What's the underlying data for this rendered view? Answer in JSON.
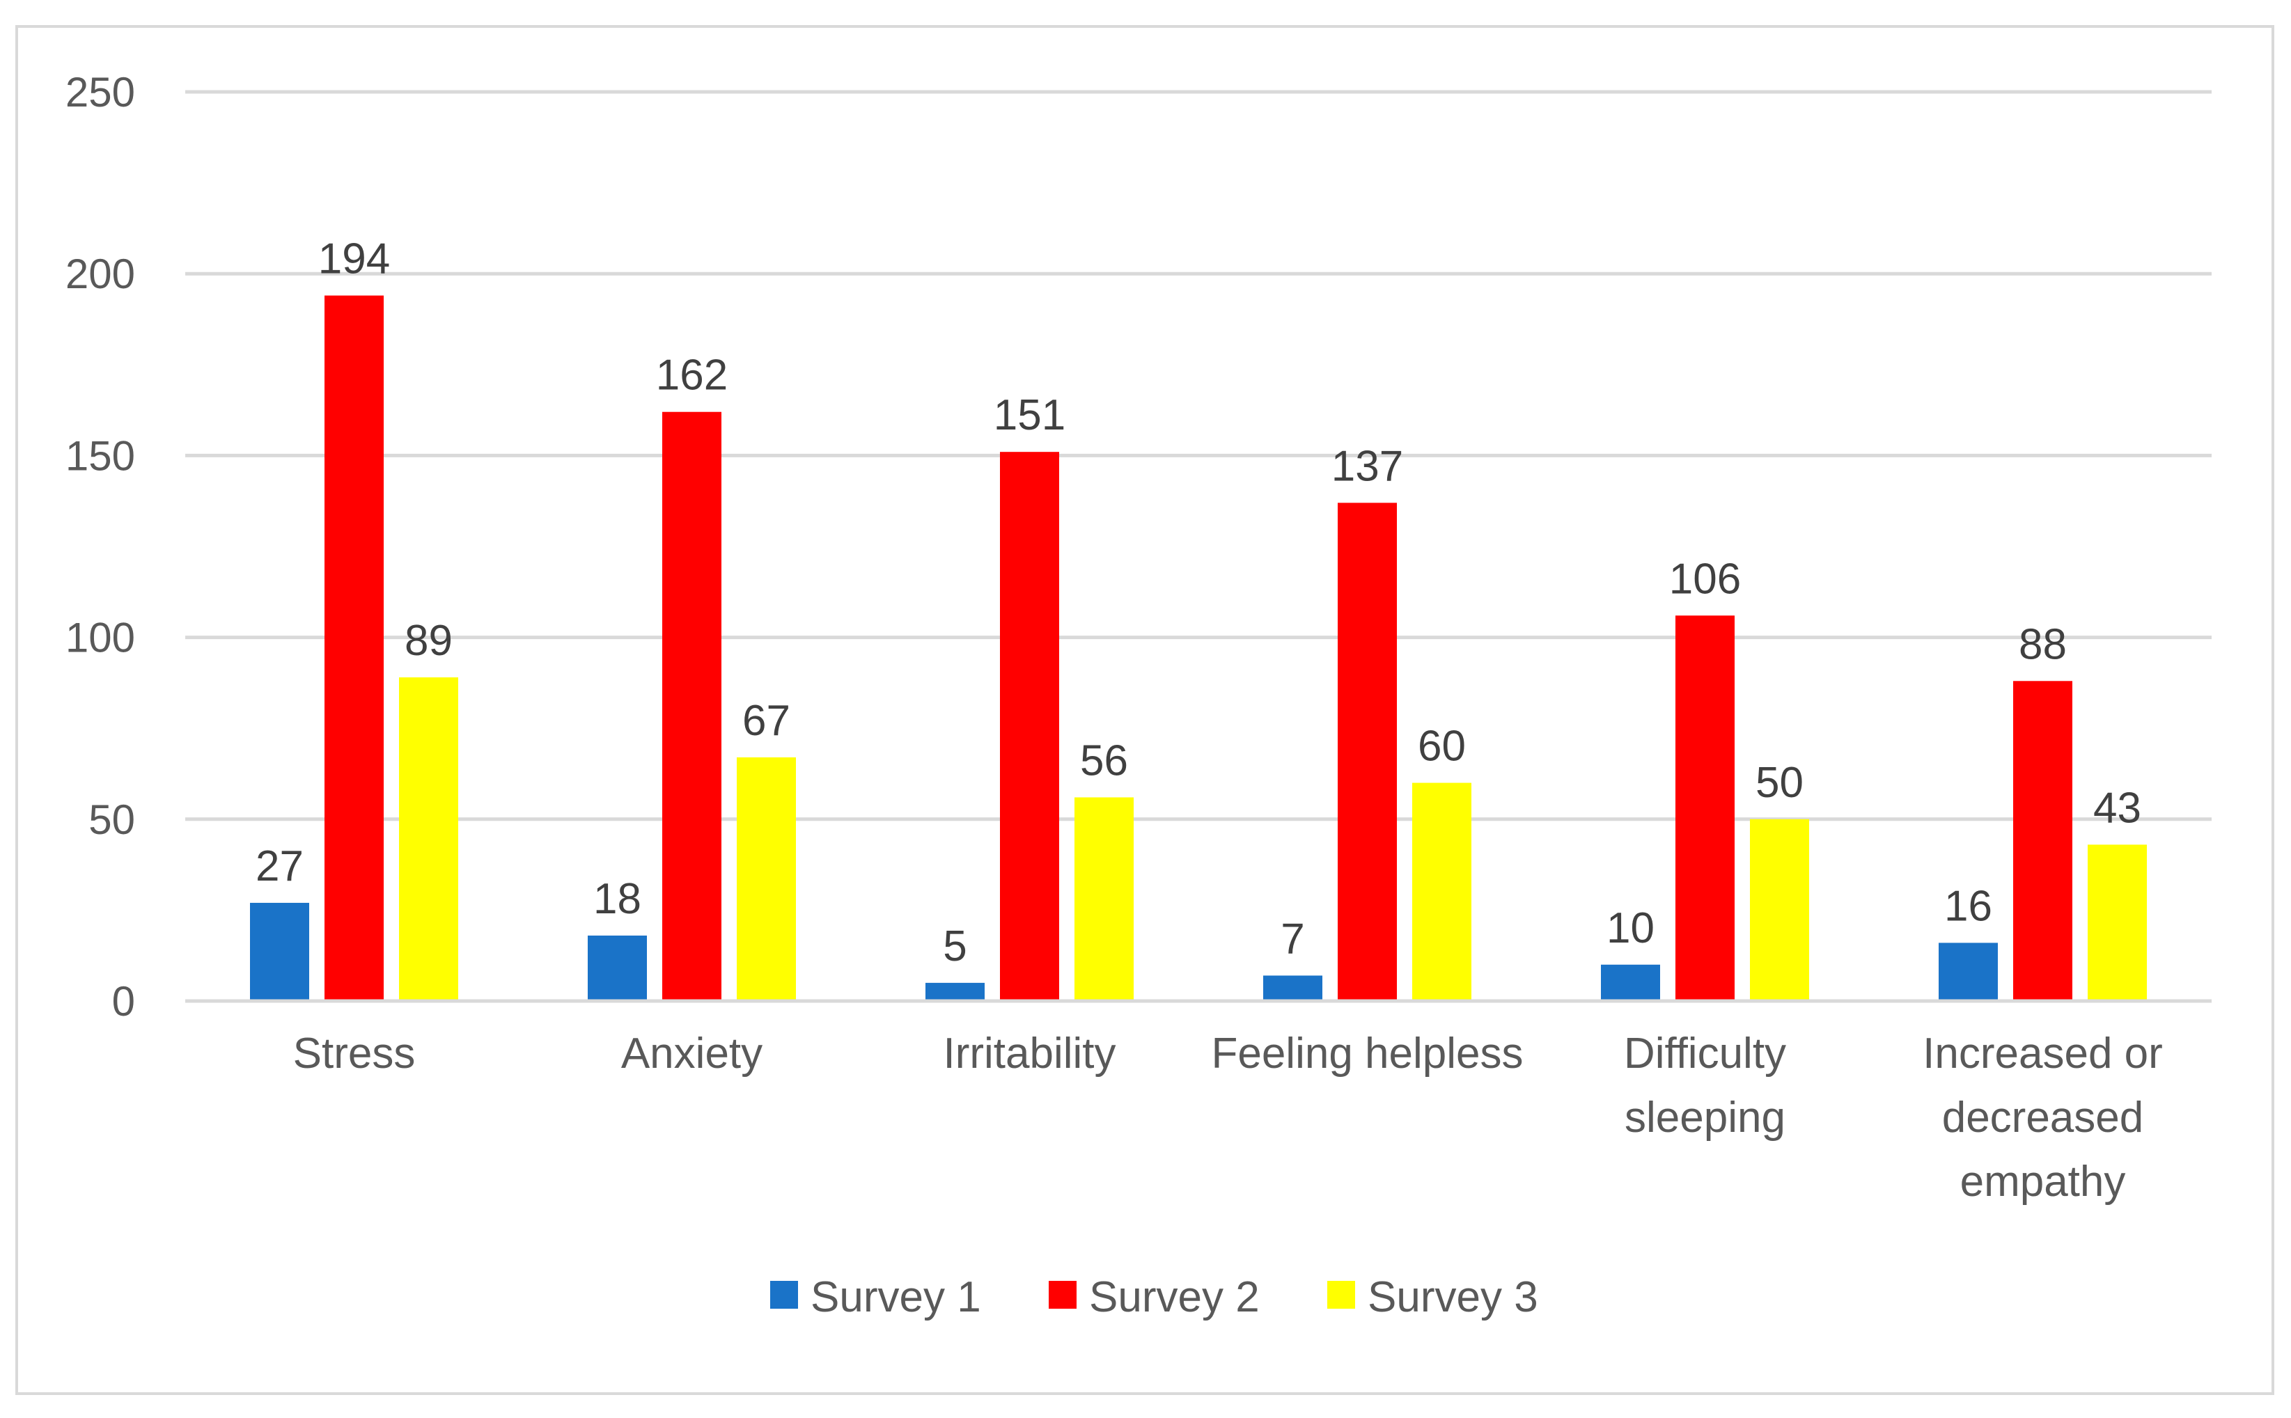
{
  "chart_data": {
    "type": "bar",
    "title": "",
    "xlabel": "",
    "ylabel": "",
    "ylim": [
      0,
      250
    ],
    "yticks": [
      0,
      50,
      100,
      150,
      200,
      250
    ],
    "grid": true,
    "legend_position": "bottom",
    "categories": [
      [
        "Stress"
      ],
      [
        "Anxiety"
      ],
      [
        "Irritability"
      ],
      [
        "Feeling helpless"
      ],
      [
        "Difficulty",
        "sleeping"
      ],
      [
        "Increased or",
        "decreased",
        "empathy"
      ]
    ],
    "series": [
      {
        "name": "Survey 1",
        "color": "#1a73c8",
        "values": [
          27,
          18,
          5,
          7,
          10,
          16
        ]
      },
      {
        "name": "Survey 2",
        "color": "#ff0000",
        "values": [
          194,
          162,
          151,
          137,
          106,
          88
        ]
      },
      {
        "name": "Survey 3",
        "color": "#ffff00",
        "values": [
          89,
          67,
          56,
          60,
          50,
          43
        ]
      }
    ]
  }
}
